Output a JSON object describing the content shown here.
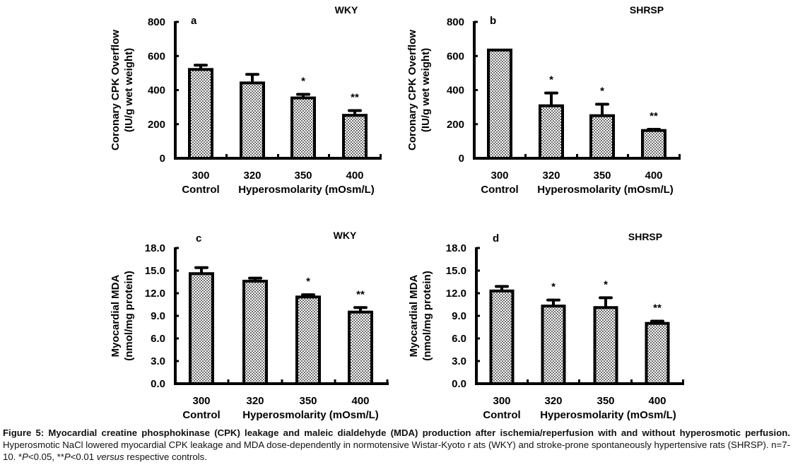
{
  "figure": {
    "caption": {
      "bold_part": "Figure 5: Myocardial creatine phosphokinase (CPK) leakage and maleic dialdehyde (MDA) production after ischemia/reperfusion with and without hyperosmotic perfusion.",
      "text_part_1": " Hyperosmotic NaCl lowered myocardial CPK leakage and MDA dose-dependently in normotensive Wistar-Kyoto r ats (WKY) and stroke-prone spontaneously hypertensive rats (SHRSP). n=7-10. *",
      "p1_italic": "P",
      "text_part_2": "<0.05, **",
      "p2_italic": "P",
      "text_part_3": "<0.01 ",
      "versus_italic": "versus",
      "text_part_4": " respective controls."
    },
    "x_group_labels": {
      "control": "Control",
      "hyper": "Hyperosmolarity (mOsm/L)"
    },
    "colors": {
      "bar_fill_dark": "#7a7a7a",
      "bar_fill_light": "#ffffff",
      "stroke": "#000000"
    }
  },
  "chart_data": [
    {
      "type": "bar",
      "panel": "a",
      "title": "WKY",
      "ylabel_line1": "Coronary CPK Overflow",
      "ylabel_line2": "(IU/g wet weight)",
      "xlabel": "Hyperosmolarity (mOsm/L)",
      "categories": [
        "300",
        "320",
        "350",
        "400"
      ],
      "values": [
        521,
        442,
        354,
        252
      ],
      "errors": [
        25,
        50,
        21,
        28
      ],
      "significance": [
        "",
        "",
        "*",
        "**"
      ],
      "ylim": [
        0,
        800
      ],
      "yticks": [
        "0",
        "200",
        "400",
        "600",
        "800"
      ],
      "ytick_values": [
        0,
        200,
        400,
        600,
        800
      ]
    },
    {
      "type": "bar",
      "panel": "b",
      "title": "SHRSP",
      "ylabel_line1": "Coronary CPK Overflow",
      "ylabel_line2": "(IU/g wet weight)",
      "xlabel": "Hyperosmolarity (mOsm/L)",
      "categories": [
        "300",
        "320",
        "350",
        "400"
      ],
      "values": [
        635,
        308,
        250,
        163
      ],
      "errors": [
        0,
        75,
        67,
        7
      ],
      "significance": [
        "",
        "*",
        "*",
        "**"
      ],
      "ylim": [
        0,
        800
      ],
      "yticks": [
        "0",
        "200",
        "400",
        "600",
        "800"
      ],
      "ytick_values": [
        0,
        200,
        400,
        600,
        800
      ]
    },
    {
      "type": "bar",
      "panel": "c",
      "title": "WKY",
      "ylabel_line1": "Myocardial MDA",
      "ylabel_line2": "(nmol/mg protein)",
      "xlabel": "Hyperosmolarity (mOsm/L)",
      "categories": [
        "300",
        "320",
        "350",
        "400"
      ],
      "values": [
        14.6,
        13.6,
        11.5,
        9.5
      ],
      "errors": [
        0.8,
        0.4,
        0.3,
        0.6
      ],
      "significance": [
        "",
        "",
        "*",
        "**"
      ],
      "ylim": [
        0,
        18
      ],
      "yticks": [
        "0.0",
        "3.0",
        "6.0",
        "9.0",
        "12.0",
        "15.0",
        "18.0"
      ],
      "ytick_values": [
        0,
        3,
        6,
        9,
        12,
        15,
        18
      ]
    },
    {
      "type": "bar",
      "panel": "d",
      "title": "SHRSP",
      "ylabel_line1": "Myocardial MDA",
      "ylabel_line2": "(nmol/mg protein)",
      "xlabel": "Hyperosmolarity (mOsm/L)",
      "categories": [
        "300",
        "320",
        "350",
        "400"
      ],
      "values": [
        12.3,
        10.3,
        10.1,
        8.0
      ],
      "errors": [
        0.6,
        0.8,
        1.3,
        0.3
      ],
      "significance": [
        "",
        "*",
        "*",
        "**"
      ],
      "ylim": [
        0,
        18
      ],
      "yticks": [
        "0.0",
        "3.0",
        "6.0",
        "9.0",
        "12.0",
        "15.0",
        "18.0"
      ],
      "ytick_values": [
        0,
        3,
        6,
        9,
        12,
        15,
        18
      ]
    }
  ]
}
